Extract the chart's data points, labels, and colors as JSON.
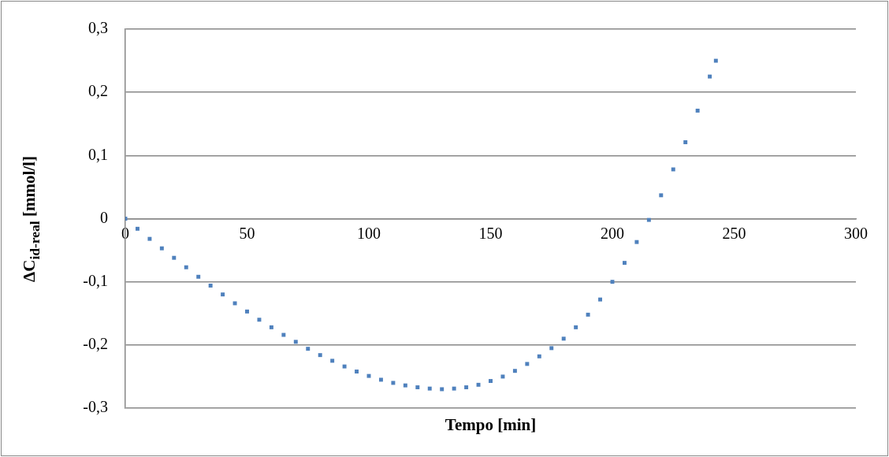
{
  "chart_data": {
    "type": "scatter",
    "xlabel": "Tempo [min]",
    "ylabel": "ΔC$_{id-real}$ [mmol/l]",
    "xlim": [
      0,
      300
    ],
    "xticks": [
      0,
      50,
      100,
      150,
      200,
      250,
      300
    ],
    "ylim": [
      -0.3,
      0.3
    ],
    "yticks": [
      {
        "value": -0.3,
        "label": "-0,3"
      },
      {
        "value": -0.2,
        "label": "-0,2"
      },
      {
        "value": -0.1,
        "label": "-0,1"
      },
      {
        "value": 0,
        "label": "0"
      },
      {
        "value": 0.1,
        "label": "0,1"
      },
      {
        "value": 0.2,
        "label": "0,2"
      },
      {
        "value": 0.3,
        "label": "0,3"
      }
    ],
    "grid": "y",
    "legend": false,
    "marker": "square",
    "series": [
      {
        "color": "#4f81bd",
        "x": [
          0,
          5,
          10,
          15,
          20,
          25,
          30,
          35,
          40,
          45,
          50,
          55,
          60,
          65,
          70,
          75,
          80,
          85,
          90,
          95,
          100,
          105,
          110,
          115,
          120,
          125,
          130,
          135,
          140,
          145,
          150,
          155,
          160,
          165,
          170,
          175,
          180,
          185,
          190,
          195,
          200,
          205,
          210,
          215,
          220,
          225,
          230,
          235,
          240,
          242.5
        ],
        "values": [
          0,
          -0.016,
          -0.032,
          -0.047,
          -0.062,
          -0.077,
          -0.092,
          -0.106,
          -0.12,
          -0.134,
          -0.147,
          -0.16,
          -0.172,
          -0.184,
          -0.195,
          -0.206,
          -0.216,
          -0.225,
          -0.234,
          -0.242,
          -0.249,
          -0.255,
          -0.26,
          -0.264,
          -0.267,
          -0.269,
          -0.27,
          -0.269,
          -0.267,
          -0.263,
          -0.257,
          -0.25,
          -0.241,
          -0.23,
          -0.218,
          -0.205,
          -0.19,
          -0.172,
          -0.152,
          -0.128,
          -0.1,
          -0.07,
          -0.037,
          -0.002,
          0.037,
          0.078,
          0.121,
          0.171,
          0.225,
          0.25
        ]
      }
    ]
  }
}
